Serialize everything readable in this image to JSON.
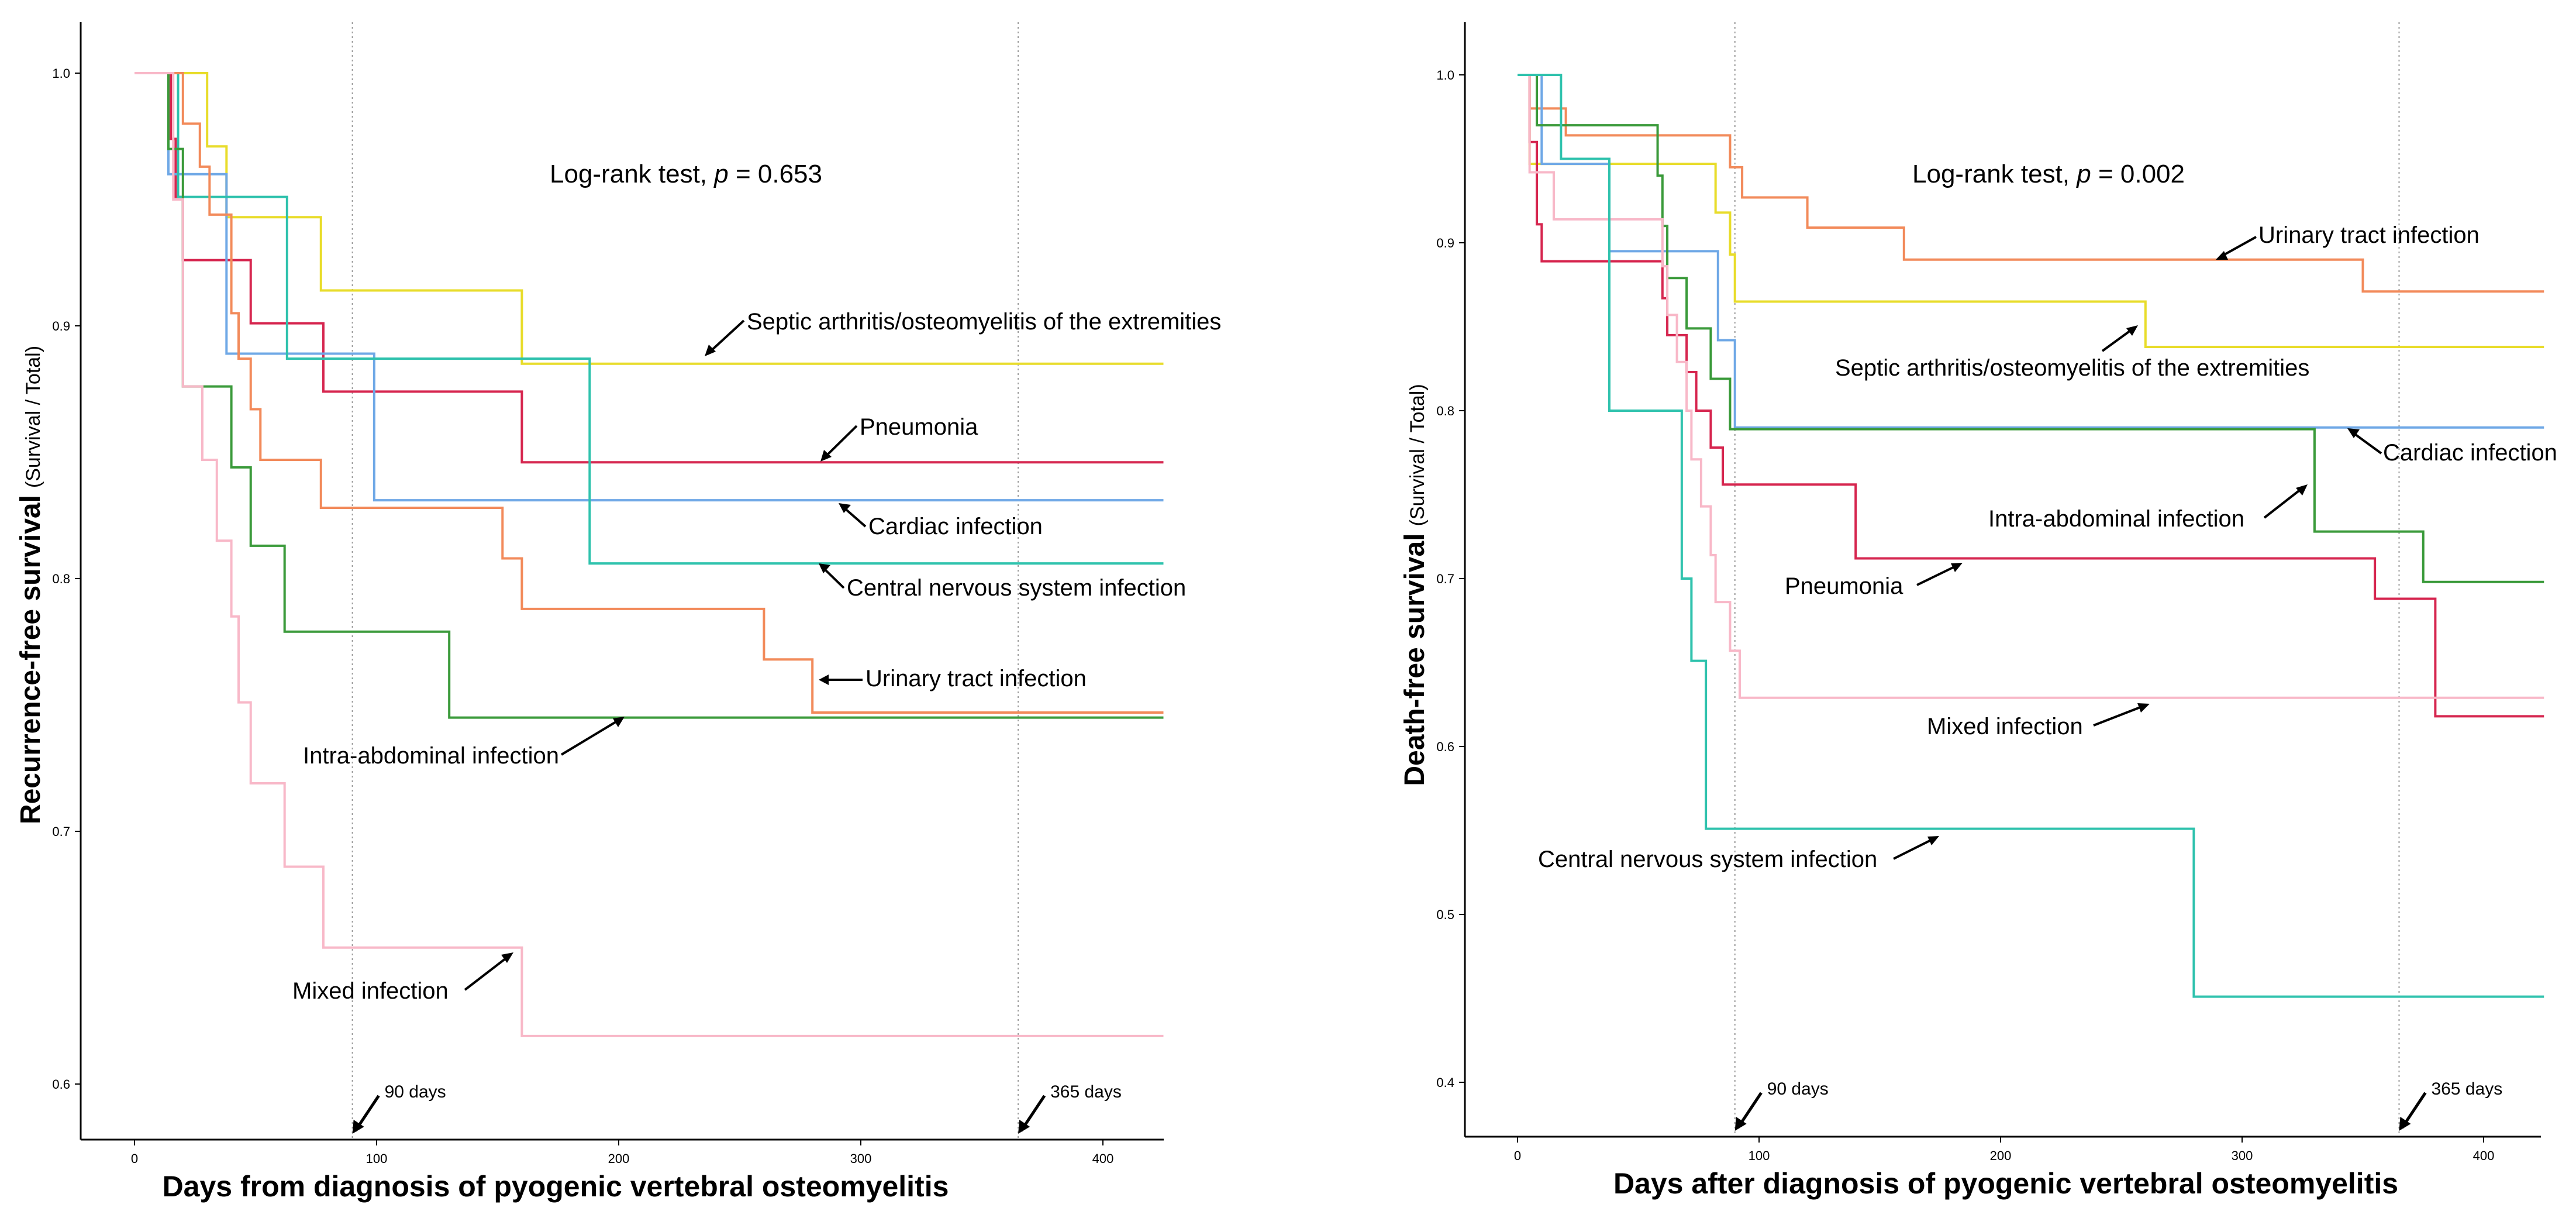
{
  "chart_data": [
    {
      "type": "line",
      "subtype": "kaplan-meier step",
      "ylabel_main": "Recurrence-free survival",
      "ylabel_sub": "(Survival / Total)",
      "xlabel": "Days from diagnosis of pyogenic vertebral osteomyelitis",
      "xlim": [
        -20,
        425
      ],
      "ylim": [
        0.58,
        1.02
      ],
      "xticks": [
        0,
        100,
        200,
        300,
        400
      ],
      "xtick_labels": [
        "0",
        "100",
        "200",
        "300",
        "400"
      ],
      "yticks": [
        0.6,
        0.7,
        0.8,
        0.9,
        1.0
      ],
      "ytick_labels": [
        "0.6",
        "0.7",
        "0.8",
        "0.9",
        "1.0"
      ],
      "logrank": {
        "prefix": "Log-rank test, ",
        "p": "p",
        "rest": " = 0.653"
      },
      "vlines": [
        {
          "x": 90,
          "label": "90 days"
        },
        {
          "x": 365,
          "label": "365 days"
        }
      ],
      "series": [
        {
          "name": "Septic arthritis/osteomyelitis of the extremities",
          "color": "#e8dc2a",
          "points": [
            [
              0,
              1
            ],
            [
              30,
              0.971
            ],
            [
              38,
              0.943
            ],
            [
              77,
              0.914
            ],
            [
              160,
              0.885
            ],
            [
              425,
              0.885
            ]
          ]
        },
        {
          "name": "Pneumonia",
          "color": "#d6264f",
          "points": [
            [
              0,
              1
            ],
            [
              15,
              0.974
            ],
            [
              17,
              0.951
            ],
            [
              20,
              0.926
            ],
            [
              48,
              0.901
            ],
            [
              78,
              0.874
            ],
            [
              160,
              0.846
            ],
            [
              425,
              0.846
            ]
          ]
        },
        {
          "name": "Cardiac infection",
          "color": "#6fa8e6",
          "points": [
            [
              0,
              1
            ],
            [
              14,
              0.96
            ],
            [
              38,
              0.889
            ],
            [
              99,
              0.831
            ],
            [
              425,
              0.831
            ]
          ]
        },
        {
          "name": "Central nervous system infection",
          "color": "#2fc2ad",
          "points": [
            [
              0,
              1
            ],
            [
              18,
              0.951
            ],
            [
              63,
              0.887
            ],
            [
              188,
              0.806
            ],
            [
              425,
              0.806
            ]
          ]
        },
        {
          "name": "Urinary tract infection",
          "color": "#f28a5a",
          "points": [
            [
              0,
              1
            ],
            [
              20,
              0.98
            ],
            [
              27,
              0.963
            ],
            [
              31,
              0.944
            ],
            [
              40,
              0.905
            ],
            [
              43,
              0.887
            ],
            [
              48,
              0.867
            ],
            [
              52,
              0.847
            ],
            [
              77,
              0.828
            ],
            [
              152,
              0.808
            ],
            [
              160,
              0.788
            ],
            [
              260,
              0.768
            ],
            [
              280,
              0.747
            ],
            [
              425,
              0.747
            ]
          ]
        },
        {
          "name": "Intra-abdominal infection",
          "color": "#3a9a3a",
          "points": [
            [
              0,
              1
            ],
            [
              14,
              0.97
            ],
            [
              20,
              0.876
            ],
            [
              40,
              0.844
            ],
            [
              48,
              0.813
            ],
            [
              62,
              0.779
            ],
            [
              130,
              0.745
            ],
            [
              425,
              0.745
            ]
          ]
        },
        {
          "name": "Mixed infection",
          "color": "#f8b8c8",
          "points": [
            [
              0,
              1
            ],
            [
              16,
              0.95
            ],
            [
              20,
              0.876
            ],
            [
              28,
              0.847
            ],
            [
              34,
              0.815
            ],
            [
              40,
              0.785
            ],
            [
              43,
              0.751
            ],
            [
              48,
              0.719
            ],
            [
              62,
              0.686
            ],
            [
              78,
              0.654
            ],
            [
              160,
              0.619
            ],
            [
              425,
              0.619
            ]
          ]
        }
      ],
      "annotations": [
        "Septic arthritis/osteomyelitis of the extremities",
        "Pneumonia",
        "Cardiac infection",
        "Central nervous system infection",
        "Urinary tract infection",
        "Intra-abdominal infection",
        "Mixed infection"
      ]
    },
    {
      "type": "line",
      "subtype": "kaplan-meier step",
      "ylabel_main": "Death-free survival",
      "ylabel_sub": "(Survival / Total)",
      "xlabel": "Days after diagnosis of pyogenic vertebral osteomyelitis",
      "xlim": [
        -20,
        425
      ],
      "ylim": [
        0.37,
        1.03
      ],
      "xticks": [
        0,
        100,
        200,
        300,
        400
      ],
      "xtick_labels": [
        "0",
        "100",
        "200",
        "300",
        "400"
      ],
      "yticks": [
        0.4,
        0.5,
        0.6,
        0.7,
        0.8,
        0.9,
        1.0
      ],
      "ytick_labels": [
        "0.4",
        "0.5",
        "0.6",
        "0.7",
        "0.8",
        "0.9",
        "1.0"
      ],
      "logrank": {
        "prefix": "Log-rank test, ",
        "p": "p",
        "rest": " = 0.002"
      },
      "vlines": [
        {
          "x": 90,
          "label": "90 days"
        },
        {
          "x": 365,
          "label": "365 days"
        }
      ],
      "series": [
        {
          "name": "Urinary tract infection",
          "color": "#f28a5a",
          "points": [
            [
              0,
              1
            ],
            [
              5,
              0.98
            ],
            [
              20,
              0.964
            ],
            [
              88,
              0.945
            ],
            [
              93,
              0.927
            ],
            [
              120,
              0.909
            ],
            [
              160,
              0.89
            ],
            [
              350,
              0.871
            ],
            [
              425,
              0.871
            ]
          ]
        },
        {
          "name": "Septic arthritis/osteomyelitis of the extremities",
          "color": "#e8dc2a",
          "points": [
            [
              0,
              1
            ],
            [
              5,
              0.947
            ],
            [
              82,
              0.918
            ],
            [
              88,
              0.893
            ],
            [
              90,
              0.865
            ],
            [
              260,
              0.838
            ],
            [
              425,
              0.838
            ]
          ]
        },
        {
          "name": "Cardiac infection",
          "color": "#6fa8e6",
          "points": [
            [
              0,
              1
            ],
            [
              10,
              0.947
            ],
            [
              38,
              0.895
            ],
            [
              80,
              0.895
            ],
            [
              83,
              0.842
            ],
            [
              90,
              0.79
            ],
            [
              425,
              0.79
            ]
          ]
        },
        {
          "name": "Intra-abdominal infection",
          "color": "#3a9a3a",
          "points": [
            [
              0,
              1
            ],
            [
              8,
              0.97
            ],
            [
              58,
              0.94
            ],
            [
              60,
              0.91
            ],
            [
              62,
              0.879
            ],
            [
              70,
              0.849
            ],
            [
              80,
              0.819
            ],
            [
              88,
              0.789
            ],
            [
              330,
              0.728
            ],
            [
              357,
              0.728
            ],
            [
              375,
              0.698
            ],
            [
              425,
              0.698
            ]
          ]
        },
        {
          "name": "Pneumonia",
          "color": "#d6264f",
          "points": [
            [
              0,
              1
            ],
            [
              5,
              0.96
            ],
            [
              8,
              0.911
            ],
            [
              10,
              0.889
            ],
            [
              60,
              0.867
            ],
            [
              62,
              0.845
            ],
            [
              70,
              0.823
            ],
            [
              74,
              0.8
            ],
            [
              80,
              0.778
            ],
            [
              85,
              0.756
            ],
            [
              140,
              0.712
            ],
            [
              355,
              0.688
            ],
            [
              380,
              0.618
            ],
            [
              425,
              0.618
            ]
          ]
        },
        {
          "name": "Mixed infection",
          "color": "#f8b8c8",
          "points": [
            [
              0,
              1
            ],
            [
              5,
              0.942
            ],
            [
              15,
              0.914
            ],
            [
              60,
              0.886
            ],
            [
              62,
              0.857
            ],
            [
              66,
              0.829
            ],
            [
              70,
              0.8
            ],
            [
              72,
              0.771
            ],
            [
              76,
              0.743
            ],
            [
              80,
              0.714
            ],
            [
              82,
              0.686
            ],
            [
              88,
              0.657
            ],
            [
              92,
              0.629
            ],
            [
              425,
              0.629
            ]
          ]
        },
        {
          "name": "Central nervous system infection",
          "color": "#2fc2ad",
          "points": [
            [
              0,
              1
            ],
            [
              18,
              0.95
            ],
            [
              38,
              0.8
            ],
            [
              66,
              0.8
            ],
            [
              68,
              0.7
            ],
            [
              72,
              0.651
            ],
            [
              78,
              0.551
            ],
            [
              280,
              0.551
            ],
            [
              280,
              0.451
            ],
            [
              425,
              0.451
            ]
          ]
        }
      ],
      "annotations": [
        "Urinary tract infection",
        "Septic arthritis/osteomyelitis of the extremities",
        "Cardiac infection",
        "Intra-abdominal infection",
        "Pneumonia",
        "Mixed infection",
        "Central nervous system infection"
      ]
    }
  ]
}
